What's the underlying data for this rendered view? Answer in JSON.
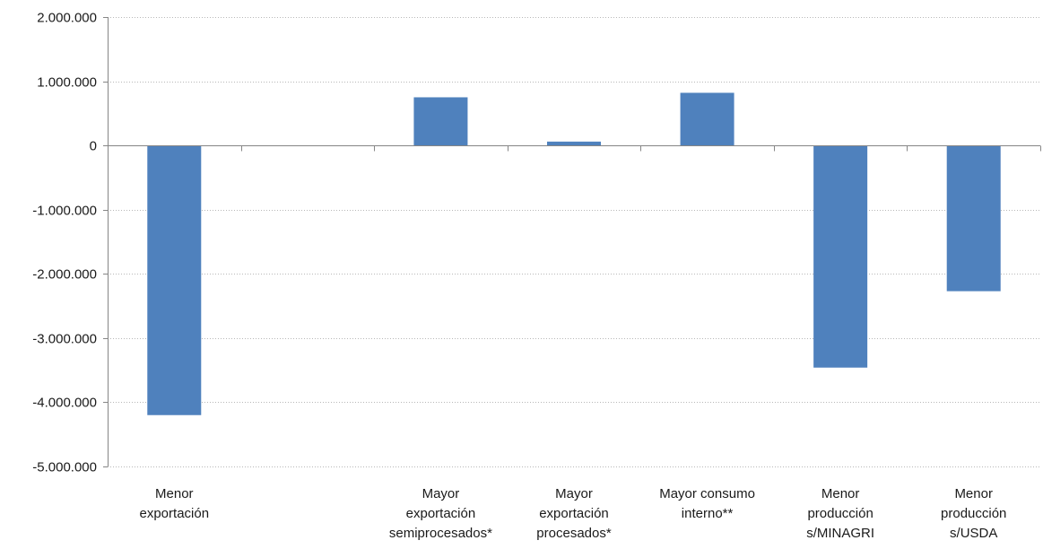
{
  "chart_data": {
    "type": "bar",
    "title": "",
    "xlabel": "",
    "ylabel": "",
    "ylim": [
      -5000000,
      2000000
    ],
    "yticks": [
      2000000,
      1000000,
      0,
      -1000000,
      -2000000,
      -3000000,
      -4000000,
      -5000000
    ],
    "ytick_labels": [
      "2.000.000",
      "1.000.000",
      "0",
      "-1.000.000",
      "-2.000.000",
      "-3.000.000",
      "-4.000.000",
      "-5.000.000"
    ],
    "grid": true,
    "legend": "none",
    "bar_color": "#4F81BD",
    "categories": [
      [
        "Menor",
        "exportación"
      ],
      [
        "",
        ""
      ],
      [
        "Mayor",
        "exportación",
        "semiprocesados*"
      ],
      [
        "Mayor",
        "exportación",
        "procesados*"
      ],
      [
        "Mayor consumo",
        "interno**"
      ],
      [
        "Menor",
        "producción",
        "s/MINAGRI"
      ],
      [
        "Menor",
        "producción",
        "s/USDA"
      ]
    ],
    "values": [
      -4200000,
      null,
      750000,
      60000,
      820000,
      -3460000,
      -2270000
    ]
  }
}
